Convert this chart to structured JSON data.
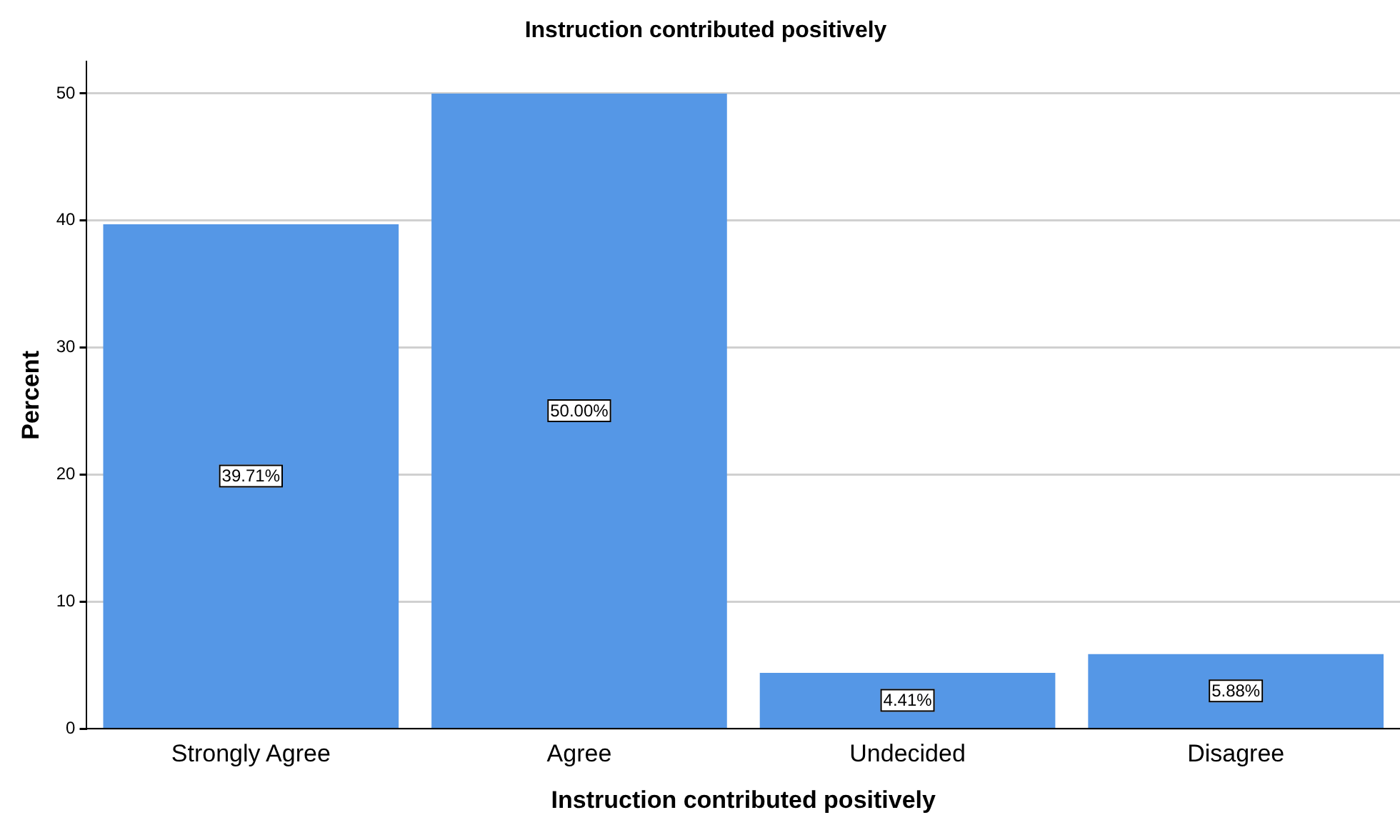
{
  "chart_data": {
    "type": "bar",
    "title": "Instruction contributed positively",
    "xlabel": "Instruction contributed positively",
    "ylabel": "Percent",
    "categories": [
      "Strongly Agree",
      "Agree",
      "Undecided",
      "Disagree"
    ],
    "values": [
      39.71,
      50.0,
      4.41,
      5.88
    ],
    "value_labels": [
      "39.71%",
      "50.00%",
      "4.41%",
      "5.88%"
    ],
    "color": "#5597e6",
    "ylim": [
      0,
      52.5
    ],
    "yticks": [
      0,
      10,
      20,
      30,
      40,
      50
    ],
    "grid": "y",
    "legend": false
  }
}
